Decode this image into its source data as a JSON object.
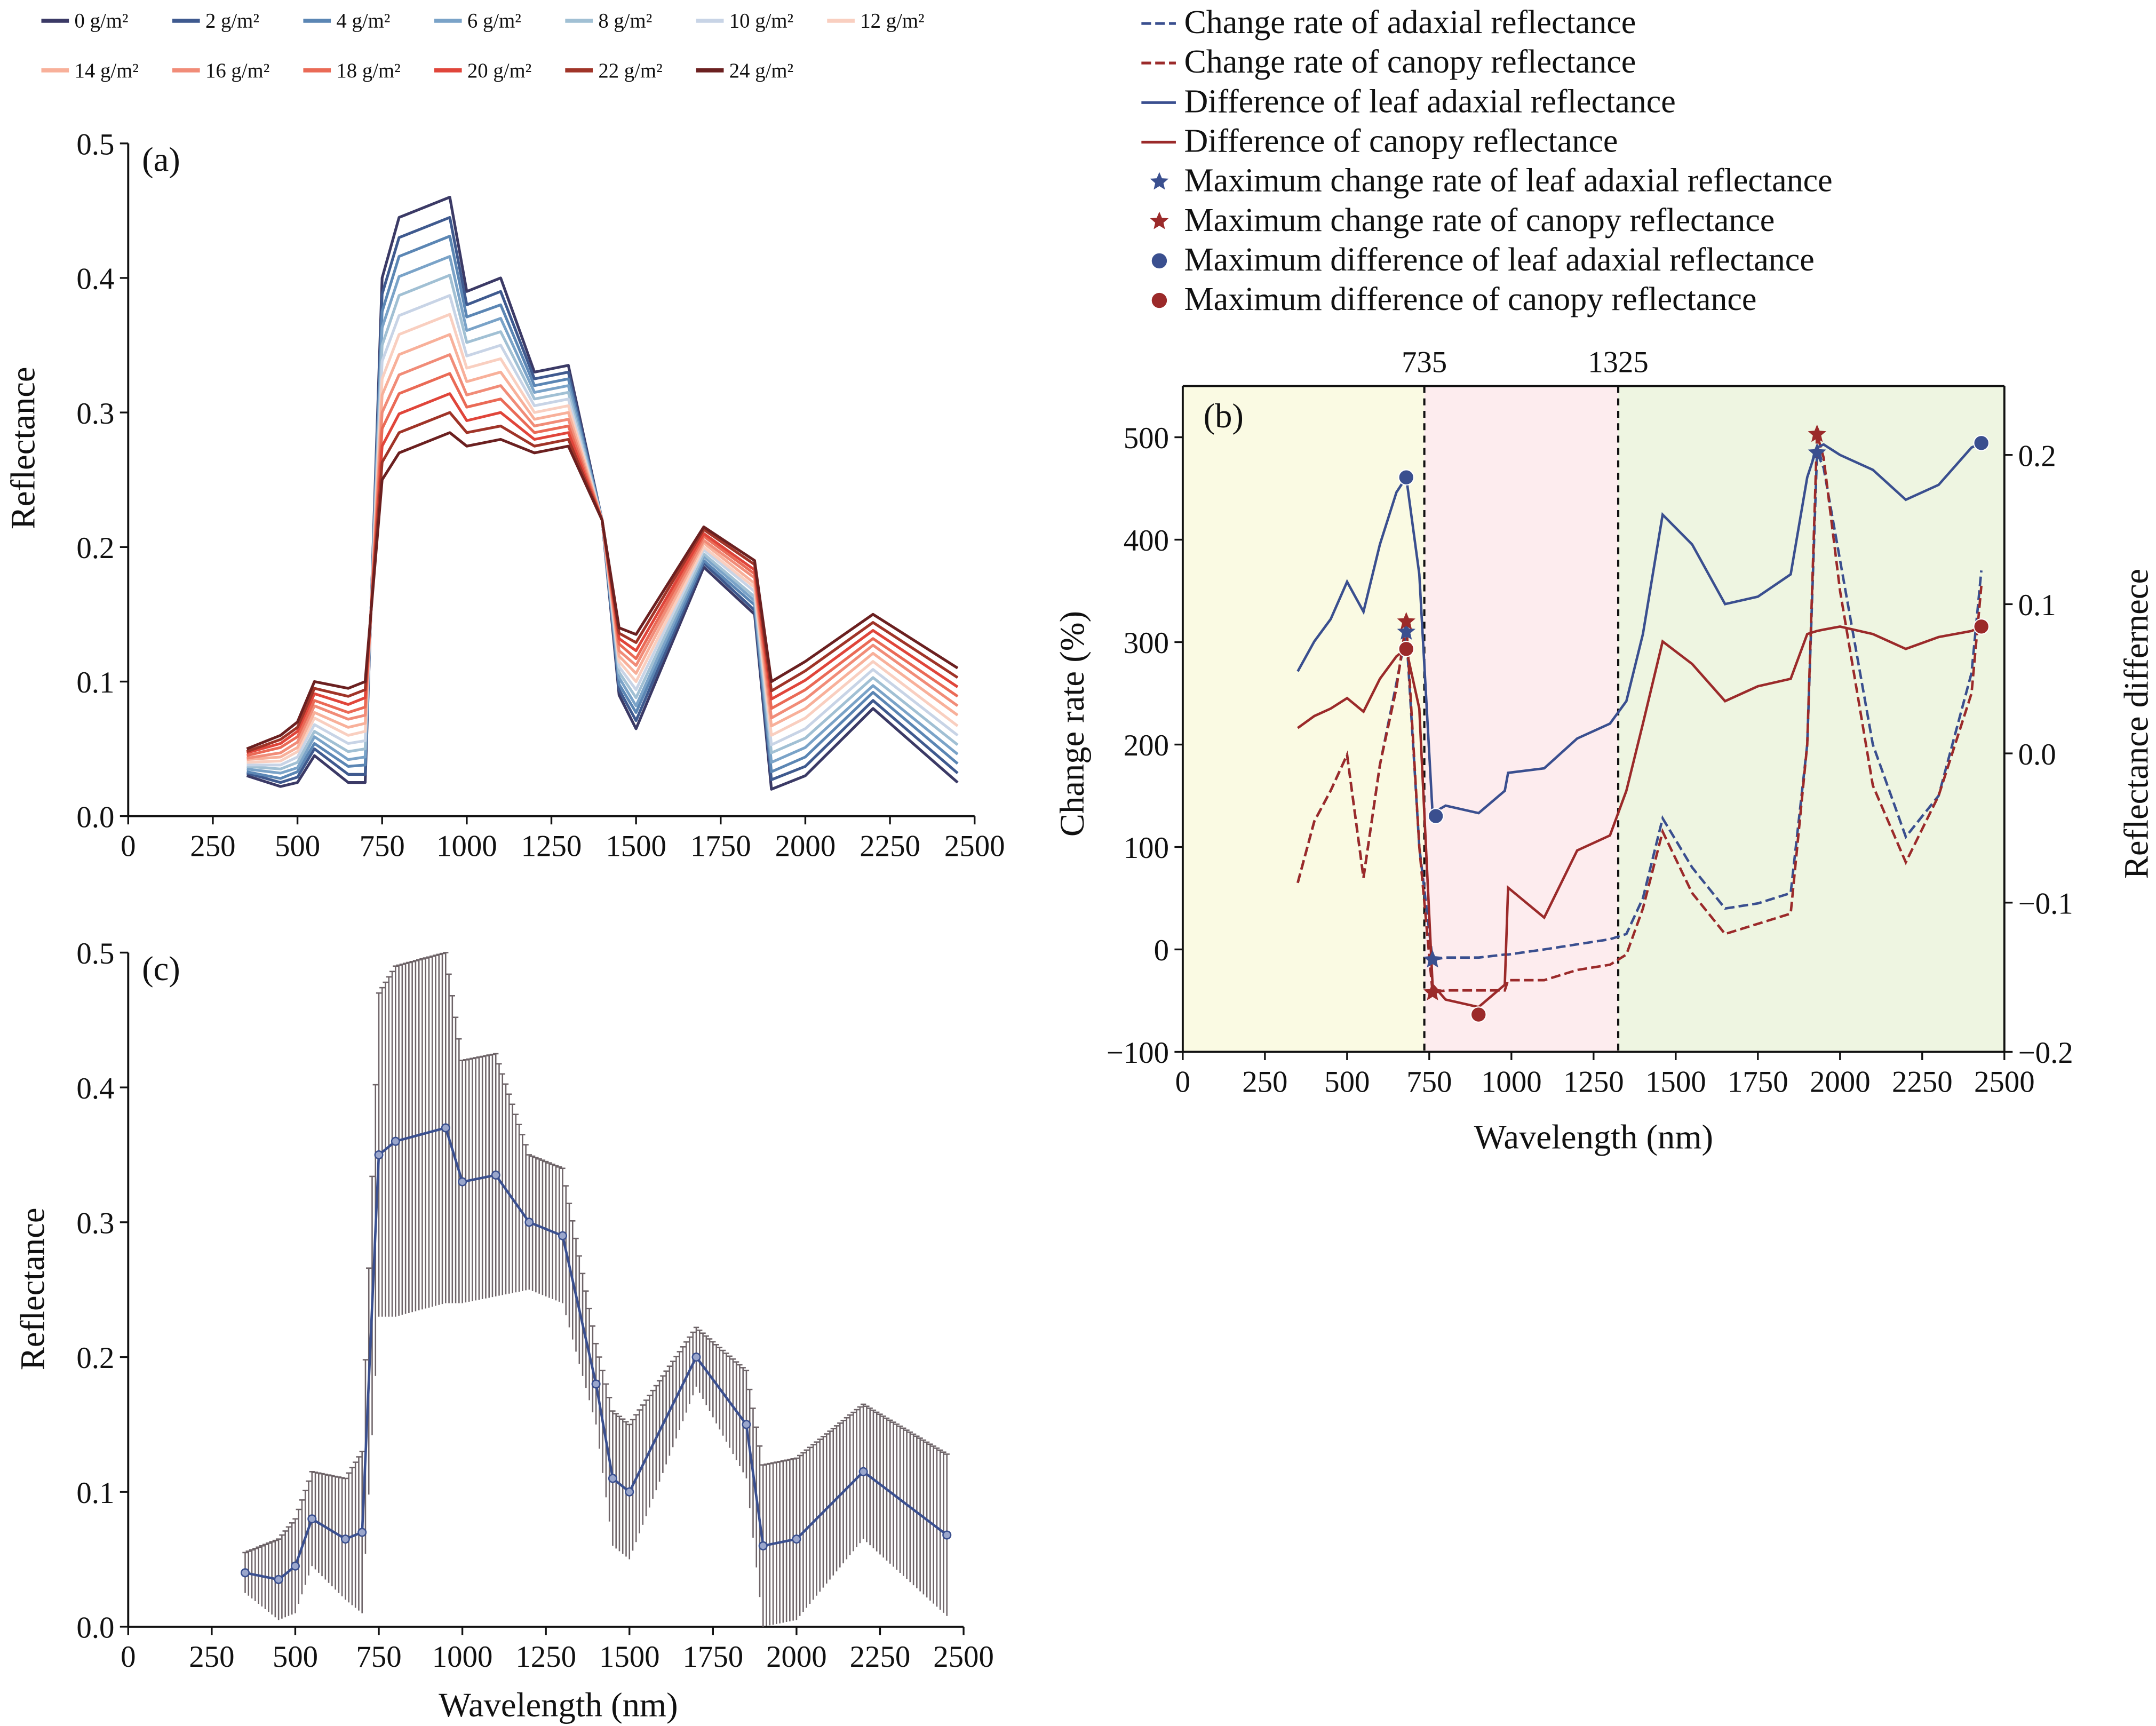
{
  "chart_data": [
    {
      "panel": "(a)",
      "type": "line",
      "xlabel": "",
      "ylabel": "Reflectance",
      "xlim": [
        0,
        2500
      ],
      "ylim": [
        0,
        0.5
      ],
      "xticks": [
        "0",
        "250",
        "500",
        "750",
        "1000",
        "1250",
        "1500",
        "1750",
        "2000",
        "2250",
        "2500"
      ],
      "yticks": [
        "0.0",
        "0.1",
        "0.2",
        "0.3",
        "0.4",
        "0.5"
      ],
      "x": [
        350,
        450,
        500,
        550,
        650,
        700,
        750,
        800,
        950,
        1000,
        1100,
        1200,
        1300,
        1400,
        1450,
        1500,
        1700,
        1850,
        1900,
        2000,
        2200,
        2450
      ],
      "series": [
        {
          "name": "0 g/m²",
          "color": "#3b3a66",
          "values": [
            0.03,
            0.022,
            0.025,
            0.045,
            0.025,
            0.025,
            0.4,
            0.445,
            0.46,
            0.39,
            0.4,
            0.33,
            0.335,
            0.22,
            0.09,
            0.065,
            0.185,
            0.15,
            0.02,
            0.03,
            0.08,
            0.025
          ]
        },
        {
          "name": "2 g/m²",
          "color": "#3f5a8f",
          "values": [
            0.032,
            0.025,
            0.029,
            0.05,
            0.031,
            0.031,
            0.388,
            0.43,
            0.445,
            0.38,
            0.39,
            0.325,
            0.33,
            0.22,
            0.094,
            0.071,
            0.188,
            0.153,
            0.027,
            0.037,
            0.086,
            0.032
          ]
        },
        {
          "name": "4 g/m²",
          "color": "#5b86b4",
          "values": [
            0.033,
            0.028,
            0.033,
            0.054,
            0.037,
            0.038,
            0.375,
            0.416,
            0.431,
            0.371,
            0.38,
            0.32,
            0.325,
            0.22,
            0.098,
            0.077,
            0.19,
            0.157,
            0.033,
            0.044,
            0.092,
            0.039
          ]
        },
        {
          "name": "6 g/m²",
          "color": "#7aa3c8",
          "values": [
            0.035,
            0.032,
            0.036,
            0.059,
            0.042,
            0.044,
            0.363,
            0.401,
            0.416,
            0.361,
            0.37,
            0.315,
            0.32,
            0.22,
            0.103,
            0.082,
            0.193,
            0.16,
            0.04,
            0.051,
            0.097,
            0.046
          ]
        },
        {
          "name": "8 g/m²",
          "color": "#a1c0d4",
          "values": [
            0.037,
            0.035,
            0.04,
            0.063,
            0.048,
            0.05,
            0.35,
            0.387,
            0.402,
            0.352,
            0.36,
            0.31,
            0.315,
            0.22,
            0.107,
            0.088,
            0.195,
            0.163,
            0.047,
            0.058,
            0.103,
            0.053
          ]
        },
        {
          "name": "10 g/m²",
          "color": "#c8d4e6",
          "values": [
            0.038,
            0.038,
            0.044,
            0.068,
            0.054,
            0.056,
            0.338,
            0.372,
            0.387,
            0.342,
            0.35,
            0.305,
            0.31,
            0.22,
            0.111,
            0.094,
            0.198,
            0.167,
            0.053,
            0.065,
            0.109,
            0.06
          ]
        },
        {
          "name": "12 g/m²",
          "color": "#f9cfc0",
          "values": [
            0.04,
            0.041,
            0.048,
            0.073,
            0.06,
            0.063,
            0.325,
            0.358,
            0.373,
            0.333,
            0.34,
            0.3,
            0.305,
            0.22,
            0.115,
            0.1,
            0.2,
            0.17,
            0.06,
            0.073,
            0.115,
            0.067
          ]
        },
        {
          "name": "14 g/m²",
          "color": "#f8b09a",
          "values": [
            0.042,
            0.044,
            0.051,
            0.077,
            0.066,
            0.069,
            0.313,
            0.343,
            0.358,
            0.323,
            0.33,
            0.295,
            0.3,
            0.22,
            0.119,
            0.106,
            0.203,
            0.173,
            0.067,
            0.08,
            0.121,
            0.075
          ]
        },
        {
          "name": "16 g/m²",
          "color": "#f18c78",
          "values": [
            0.043,
            0.047,
            0.055,
            0.082,
            0.072,
            0.075,
            0.3,
            0.328,
            0.343,
            0.313,
            0.32,
            0.29,
            0.295,
            0.22,
            0.123,
            0.112,
            0.205,
            0.177,
            0.073,
            0.087,
            0.127,
            0.082
          ]
        },
        {
          "name": "18 g/m²",
          "color": "#ea6a56",
          "values": [
            0.045,
            0.051,
            0.059,
            0.086,
            0.077,
            0.081,
            0.288,
            0.314,
            0.329,
            0.304,
            0.31,
            0.285,
            0.29,
            0.22,
            0.128,
            0.117,
            0.208,
            0.18,
            0.08,
            0.094,
            0.132,
            0.089
          ]
        },
        {
          "name": "20 g/m²",
          "color": "#e0453a",
          "values": [
            0.047,
            0.054,
            0.063,
            0.091,
            0.083,
            0.088,
            0.275,
            0.299,
            0.314,
            0.294,
            0.3,
            0.28,
            0.285,
            0.22,
            0.132,
            0.123,
            0.21,
            0.183,
            0.087,
            0.101,
            0.138,
            0.096
          ]
        },
        {
          "name": "22 g/m²",
          "color": "#a03428",
          "values": [
            0.048,
            0.057,
            0.066,
            0.095,
            0.089,
            0.094,
            0.263,
            0.285,
            0.3,
            0.285,
            0.29,
            0.275,
            0.28,
            0.22,
            0.136,
            0.129,
            0.213,
            0.187,
            0.093,
            0.108,
            0.144,
            0.103
          ]
        },
        {
          "name": "24 g/m²",
          "color": "#6b2020",
          "values": [
            0.05,
            0.06,
            0.07,
            0.1,
            0.095,
            0.1,
            0.25,
            0.27,
            0.285,
            0.275,
            0.28,
            0.27,
            0.275,
            0.22,
            0.14,
            0.135,
            0.215,
            0.19,
            0.1,
            0.115,
            0.15,
            0.11
          ]
        }
      ],
      "legend": "top"
    },
    {
      "panel": "(b)",
      "type": "line",
      "xlabel": "Wavelength (nm)",
      "ylabel": "Change rate (%)",
      "ylabel_right": "Reflectance differnece",
      "xlim": [
        0,
        2500
      ],
      "ylim": [
        -100,
        550
      ],
      "ylim_right": [
        -0.2,
        0.24
      ],
      "xticks": [
        "0",
        "250",
        "500",
        "750",
        "1000",
        "1250",
        "1500",
        "1750",
        "2000",
        "2250",
        "2500"
      ],
      "yticks": [
        "−100",
        "0",
        "100",
        "200",
        "300",
        "400",
        "500"
      ],
      "yticks_right": [
        "−0.2",
        "−0.1",
        "0.0",
        "0.1",
        "0.2"
      ],
      "boundaries": [
        {
          "value": 735,
          "label": "735"
        },
        {
          "value": 1325,
          "label": "1325"
        }
      ],
      "regions": [
        {
          "from": 0,
          "to": 735,
          "color": "#fafae3"
        },
        {
          "from": 735,
          "to": 1325,
          "color": "#fdecee"
        },
        {
          "from": 1325,
          "to": 2500,
          "color": "#eef5e1"
        }
      ],
      "x": [
        350,
        400,
        450,
        500,
        550,
        600,
        650,
        680,
        720,
        760,
        800,
        900,
        980,
        990,
        1100,
        1200,
        1300,
        1350,
        1400,
        1460,
        1550,
        1650,
        1750,
        1850,
        1900,
        1930,
        1950,
        2000,
        2100,
        2200,
        2300,
        2400,
        2430
      ],
      "series": [
        {
          "name": "Change rate of adaxial reflectance",
          "axis": "left",
          "style": "dashed",
          "color": "#3a4f8f",
          "values": [
            65,
            125,
            155,
            190,
            70,
            180,
            260,
            310,
            100,
            -10,
            -8,
            -8,
            -5,
            -5,
            0,
            5,
            10,
            15,
            50,
            128,
            80,
            40,
            45,
            55,
            200,
            485,
            470,
            380,
            200,
            110,
            150,
            270,
            370
          ]
        },
        {
          "name": "Change rate of canopy reflectance",
          "axis": "left",
          "style": "dashed",
          "color": "#9b2a2a",
          "values": [
            65,
            125,
            155,
            190,
            70,
            180,
            255,
            320,
            100,
            -42,
            -40,
            -40,
            -40,
            -30,
            -30,
            -20,
            -15,
            -5,
            40,
            115,
            55,
            15,
            25,
            35,
            200,
            503,
            480,
            350,
            160,
            85,
            150,
            250,
            355
          ]
        },
        {
          "name": "Difference of leaf adaxial reflectance",
          "axis": "right",
          "style": "solid",
          "color": "#3a4f8f",
          "values": [
            0.055,
            0.075,
            0.09,
            0.115,
            0.095,
            0.14,
            0.175,
            0.185,
            0.12,
            -0.04,
            -0.035,
            -0.04,
            -0.025,
            -0.013,
            -0.01,
            0.01,
            0.02,
            0.035,
            0.08,
            0.16,
            0.14,
            0.1,
            0.105,
            0.12,
            0.185,
            0.205,
            0.207,
            0.2,
            0.19,
            0.17,
            0.18,
            0.205,
            0.208
          ]
        },
        {
          "name": "Difference of canopy reflectance",
          "axis": "right",
          "style": "solid",
          "color": "#9b2a2a",
          "values": [
            0.017,
            0.025,
            0.03,
            0.037,
            0.028,
            0.05,
            0.065,
            0.07,
            0.03,
            -0.155,
            -0.165,
            -0.17,
            -0.155,
            -0.09,
            -0.11,
            -0.065,
            -0.055,
            -0.025,
            0.02,
            0.075,
            0.06,
            0.035,
            0.045,
            0.05,
            0.08,
            0.082,
            0.083,
            0.085,
            0.08,
            0.07,
            0.078,
            0.082,
            0.085
          ]
        }
      ],
      "markers": [
        {
          "name": "Maximum change rate of leaf adaxial reflectance",
          "shape": "star",
          "axis": "left",
          "color": "#3a4f8f",
          "points": [
            [
              680,
              310
            ],
            [
              760,
              -10
            ],
            [
              1930,
              485
            ]
          ]
        },
        {
          "name": "Maximum change rate of canopy reflectance",
          "shape": "star",
          "axis": "left",
          "color": "#9b2a2a",
          "points": [
            [
              680,
              320
            ],
            [
              760,
              -42
            ],
            [
              1930,
              503
            ]
          ]
        },
        {
          "name": "Maximum difference of leaf adaxial reflectance",
          "shape": "circle",
          "axis": "right",
          "color": "#3a4f8f",
          "points": [
            [
              680,
              0.185
            ],
            [
              770,
              -0.042
            ],
            [
              2430,
              0.208
            ]
          ]
        },
        {
          "name": "Maximum difference of canopy reflectance",
          "shape": "circle",
          "axis": "right",
          "color": "#9b2a2a",
          "points": [
            [
              680,
              0.07
            ],
            [
              900,
              -0.175
            ],
            [
              2430,
              0.085
            ]
          ]
        }
      ],
      "legend": "top-right"
    },
    {
      "panel": "(c)",
      "type": "line",
      "xlabel": "Wavelength (nm)",
      "ylabel": "Reflectance",
      "xlim": [
        0,
        2500
      ],
      "ylim": [
        0,
        0.5
      ],
      "xticks": [
        "0",
        "250",
        "500",
        "750",
        "1000",
        "1250",
        "1500",
        "1750",
        "2000",
        "2250",
        "2500"
      ],
      "yticks": [
        "0.0",
        "0.1",
        "0.2",
        "0.3",
        "0.4",
        "0.5"
      ],
      "x": [
        350,
        450,
        500,
        550,
        650,
        700,
        750,
        800,
        950,
        1000,
        1100,
        1200,
        1300,
        1400,
        1450,
        1500,
        1700,
        1850,
        1900,
        2000,
        2200,
        2450
      ],
      "mean": [
        0.04,
        0.035,
        0.045,
        0.08,
        0.065,
        0.07,
        0.35,
        0.36,
        0.37,
        0.33,
        0.335,
        0.3,
        0.29,
        0.18,
        0.11,
        0.1,
        0.2,
        0.15,
        0.06,
        0.065,
        0.115,
        0.068
      ],
      "std": [
        0.015,
        0.03,
        0.035,
        0.035,
        0.045,
        0.06,
        0.12,
        0.13,
        0.13,
        0.09,
        0.09,
        0.05,
        0.05,
        0.03,
        0.05,
        0.05,
        0.022,
        0.04,
        0.06,
        0.06,
        0.05,
        0.06
      ],
      "color": "#3a4f8f",
      "errorbar_color": "#6e6468"
    }
  ]
}
